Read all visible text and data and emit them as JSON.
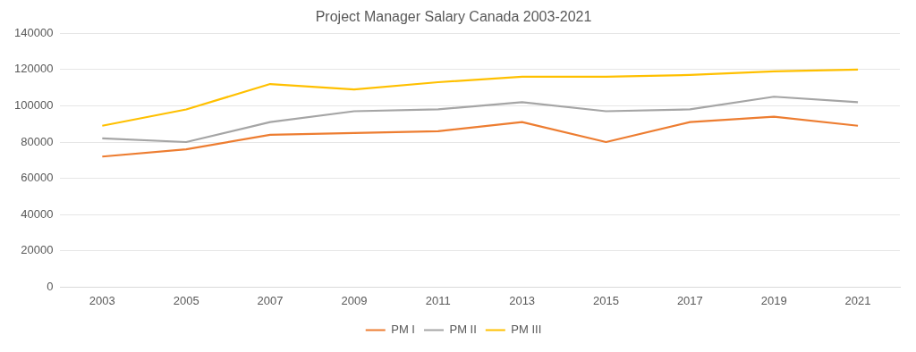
{
  "chart_data": {
    "type": "line",
    "title": "Project Manager Salary Canada 2003-2021",
    "categories": [
      "2003",
      "2005",
      "2007",
      "2009",
      "2011",
      "2013",
      "2015",
      "2017",
      "2019",
      "2021"
    ],
    "series": [
      {
        "name": "PM I",
        "color": "#ed7d31",
        "values": [
          72000,
          76000,
          84000,
          85000,
          86000,
          91000,
          80000,
          91000,
          94000,
          89000
        ]
      },
      {
        "name": "PM II",
        "color": "#a5a5a5",
        "values": [
          82000,
          80000,
          91000,
          97000,
          98000,
          102000,
          97000,
          98000,
          105000,
          102000
        ]
      },
      {
        "name": "PM III",
        "color": "#ffc000",
        "values": [
          89000,
          98000,
          112000,
          109000,
          113000,
          116000,
          116000,
          117000,
          119000,
          120000
        ]
      }
    ],
    "ylim": [
      0,
      140000
    ],
    "yticks": [
      0,
      20000,
      40000,
      60000,
      80000,
      100000,
      120000,
      140000
    ],
    "grid": "y",
    "legend": "bottom",
    "marker": "none",
    "line_style": "solid"
  }
}
